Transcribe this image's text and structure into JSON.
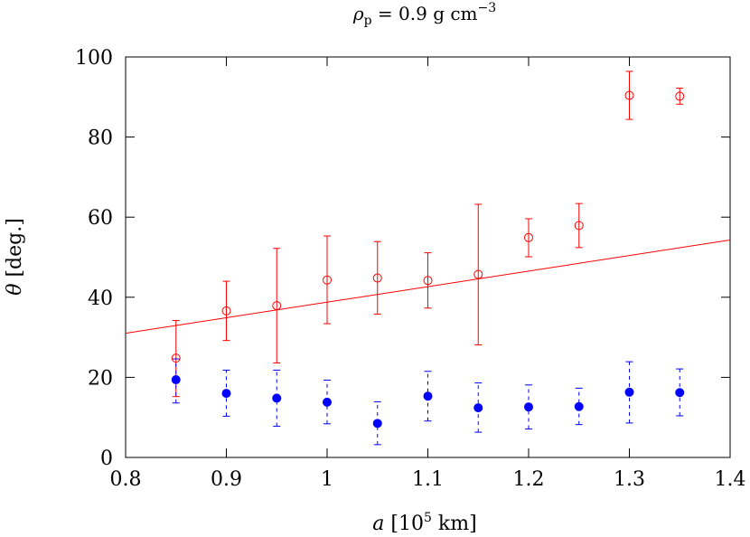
{
  "chart_data": {
    "type": "scatter",
    "title": {
      "symbol": "ρ",
      "subscript": "p",
      "text": " = 0.9 g cm",
      "superscript": "−3"
    },
    "xlabel": {
      "symbol": "a",
      "pre": " [10",
      "superscript": "5",
      "post": " km]"
    },
    "ylabel": {
      "symbol": "θ",
      "text": " [deg.]"
    },
    "xlim": [
      0.8,
      1.4
    ],
    "ylim": [
      0,
      100
    ],
    "xticks": [
      "0.8",
      "0.9",
      "1",
      "1.1",
      "1.2",
      "1.3",
      "1.4"
    ],
    "yticks": [
      "0",
      "20",
      "40",
      "60",
      "80",
      "100"
    ],
    "grid": false,
    "legend": "none",
    "series": [
      {
        "marker": "open-circle",
        "color": "#ff0000",
        "errorbar_style": "solid",
        "points": [
          {
            "x": 0.85,
            "y": 24.8,
            "lo": 15.2,
            "hi": 34.2
          },
          {
            "x": 0.9,
            "y": 36.6,
            "lo": 29.2,
            "hi": 44.0
          },
          {
            "x": 0.95,
            "y": 37.9,
            "lo": 23.6,
            "hi": 52.2
          },
          {
            "x": 1.0,
            "y": 44.3,
            "lo": 33.4,
            "hi": 55.3
          },
          {
            "x": 1.05,
            "y": 44.8,
            "lo": 35.8,
            "hi": 53.9
          },
          {
            "x": 1.1,
            "y": 44.2,
            "lo": 37.3,
            "hi": 51.1
          },
          {
            "x": 1.15,
            "y": 45.7,
            "lo": 28.1,
            "hi": 63.2
          },
          {
            "x": 1.2,
            "y": 54.9,
            "lo": 50.1,
            "hi": 59.6
          },
          {
            "x": 1.25,
            "y": 57.9,
            "lo": 52.4,
            "hi": 63.4
          },
          {
            "x": 1.3,
            "y": 90.4,
            "lo": 84.4,
            "hi": 96.4
          },
          {
            "x": 1.35,
            "y": 90.2,
            "lo": 88.2,
            "hi": 92.2
          }
        ]
      },
      {
        "marker": "filled-circle",
        "color": "#0000ff",
        "errorbar_style": "dashed",
        "points": [
          {
            "x": 0.85,
            "y": 19.4,
            "lo": 13.6,
            "hi": 24.6
          },
          {
            "x": 0.9,
            "y": 16.0,
            "lo": 10.3,
            "hi": 21.8
          },
          {
            "x": 0.95,
            "y": 14.8,
            "lo": 7.8,
            "hi": 21.8
          },
          {
            "x": 1.0,
            "y": 13.8,
            "lo": 8.4,
            "hi": 19.3
          },
          {
            "x": 1.05,
            "y": 8.5,
            "lo": 3.2,
            "hi": 13.9
          },
          {
            "x": 1.1,
            "y": 15.3,
            "lo": 9.1,
            "hi": 21.5
          },
          {
            "x": 1.15,
            "y": 12.4,
            "lo": 6.3,
            "hi": 18.6
          },
          {
            "x": 1.2,
            "y": 12.6,
            "lo": 7.1,
            "hi": 18.1
          },
          {
            "x": 1.25,
            "y": 12.7,
            "lo": 8.2,
            "hi": 17.3
          },
          {
            "x": 1.3,
            "y": 16.3,
            "lo": 8.6,
            "hi": 23.9
          },
          {
            "x": 1.35,
            "y": 16.2,
            "lo": 10.4,
            "hi": 22.1
          }
        ]
      }
    ],
    "fit_line": {
      "color": "#ff0000",
      "x": [
        0.8,
        1.4
      ],
      "y": [
        31.0,
        54.3
      ]
    }
  }
}
